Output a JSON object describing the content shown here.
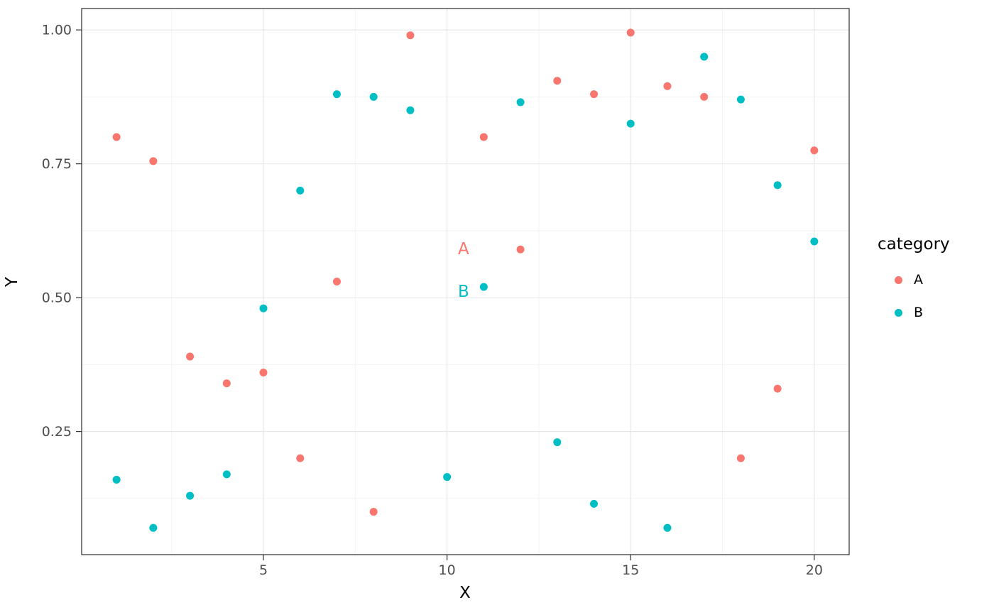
{
  "chart_data": {
    "type": "scatter",
    "title": "",
    "xlabel": "X",
    "ylabel": "Y",
    "xlim": [
      0.05,
      20.95
    ],
    "ylim": [
      0.02,
      1.04
    ],
    "x_ticks": [
      5,
      10,
      15,
      20
    ],
    "x_tick_labels": [
      "5",
      "10",
      "15",
      "20"
    ],
    "x_minor_ticks": [
      2.5,
      7.5,
      12.5,
      17.5
    ],
    "y_ticks": [
      0.25,
      0.5,
      0.75,
      1.0
    ],
    "y_tick_labels": [
      "0.25",
      "0.50",
      "0.75",
      "1.00"
    ],
    "y_minor_ticks": [
      0.125,
      0.375,
      0.625,
      0.875
    ],
    "grid": true,
    "panel_background": "#ffffff",
    "grid_major_color": "#e6e6e6",
    "grid_minor_color": "#f2f2f2",
    "panel_border_color": "#2b2b2b",
    "tick_label_color": "#4d4d4d",
    "legend": {
      "title": "category",
      "position": "right",
      "entries": [
        {
          "label": "A",
          "color": "#F8766D"
        },
        {
          "label": "B",
          "color": "#00BFC4"
        }
      ]
    },
    "series": [
      {
        "name": "A",
        "color": "#F8766D",
        "points": [
          [
            1,
            0.8
          ],
          [
            2,
            0.755
          ],
          [
            3,
            0.39
          ],
          [
            4,
            0.34
          ],
          [
            5,
            0.36
          ],
          [
            6,
            0.2
          ],
          [
            7,
            0.53
          ],
          [
            8,
            0.1
          ],
          [
            9,
            0.99
          ],
          [
            11,
            0.8
          ],
          [
            12,
            0.59
          ],
          [
            13,
            0.905
          ],
          [
            14,
            0.88
          ],
          [
            15,
            0.995
          ],
          [
            16,
            0.895
          ],
          [
            17,
            0.875
          ],
          [
            18,
            0.2
          ],
          [
            19,
            0.33
          ],
          [
            20,
            0.775
          ]
        ]
      },
      {
        "name": "B",
        "color": "#00BFC4",
        "points": [
          [
            1,
            0.16
          ],
          [
            2,
            0.07
          ],
          [
            3,
            0.13
          ],
          [
            4,
            0.17
          ],
          [
            5,
            0.48
          ],
          [
            6,
            0.7
          ],
          [
            7,
            0.88
          ],
          [
            8,
            0.875
          ],
          [
            9,
            0.85
          ],
          [
            10,
            0.165
          ],
          [
            11,
            0.52
          ],
          [
            12,
            0.865
          ],
          [
            13,
            0.23
          ],
          [
            14,
            0.115
          ],
          [
            15,
            0.825
          ],
          [
            16,
            0.07
          ],
          [
            17,
            0.95
          ],
          [
            18,
            0.87
          ],
          [
            19,
            0.71
          ],
          [
            20,
            0.605
          ]
        ]
      }
    ],
    "annotations": [
      {
        "text": "A",
        "x": 10.45,
        "y": 0.592,
        "color": "#F8766D"
      },
      {
        "text": "B",
        "x": 10.45,
        "y": 0.512,
        "color": "#00BFC4"
      }
    ]
  }
}
